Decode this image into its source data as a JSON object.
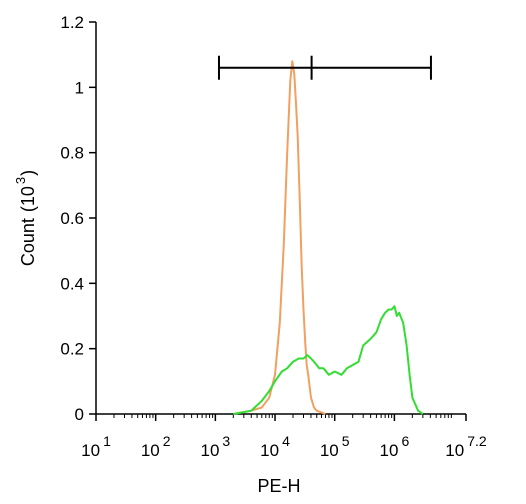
{
  "chart_data": {
    "type": "line",
    "title": "",
    "xlabel": "PE-H",
    "ylabel": "Count",
    "ylabel_unit": "(10",
    "ylabel_unit_exp": "3",
    "ylabel_unit_close": ")",
    "x_scale": "log",
    "xlim": [
      10,
      15848932
    ],
    "ylim": [
      0,
      1.2
    ],
    "grid": false,
    "legend": "none",
    "x_ticks": [
      {
        "base": "10",
        "exp": "1",
        "value": 10
      },
      {
        "base": "10",
        "exp": "2",
        "value": 100
      },
      {
        "base": "10",
        "exp": "3",
        "value": 1000
      },
      {
        "base": "10",
        "exp": "4",
        "value": 10000
      },
      {
        "base": "10",
        "exp": "5",
        "value": 100000
      },
      {
        "base": "10",
        "exp": "6",
        "value": 1000000
      },
      {
        "base": "10",
        "exp": "7.2",
        "value": 15848932
      }
    ],
    "y_ticks": [
      {
        "label": "0",
        "value": 0
      },
      {
        "label": "0.2",
        "value": 0.2
      },
      {
        "label": "0.4",
        "value": 0.4
      },
      {
        "label": "0.6",
        "value": 0.6
      },
      {
        "label": "0.8",
        "value": 0.8
      },
      {
        "label": "1",
        "value": 1.0
      },
      {
        "label": "1.2",
        "value": 1.2
      }
    ],
    "gate": {
      "x_start": 1150,
      "x_divider": 41000,
      "x_end": 4100000,
      "y": 1.06
    },
    "series": [
      {
        "color": "#f0a060",
        "x": [
          2000,
          4000,
          6000,
          8000,
          10000,
          12000,
          14000,
          16000,
          18000,
          19500,
          21000,
          22500,
          24000,
          26000,
          28000,
          30000,
          32000,
          34000,
          36000,
          40000,
          45000,
          50000,
          60000,
          70000
        ],
        "values": [
          0,
          0.01,
          0.02,
          0.05,
          0.12,
          0.28,
          0.52,
          0.8,
          1.02,
          1.08,
          1.04,
          0.95,
          0.85,
          0.65,
          0.45,
          0.32,
          0.22,
          0.15,
          0.12,
          0.05,
          0.02,
          0.01,
          0.005,
          0
        ]
      },
      {
        "color": "#33dd33",
        "x": [
          2000,
          4000,
          6000,
          8000,
          10000,
          13000,
          16000,
          20000,
          25000,
          30000,
          35000,
          40000,
          45000,
          55000,
          65000,
          80000,
          100000,
          130000,
          160000,
          200000,
          250000,
          300000,
          400000,
          500000,
          600000,
          700000,
          800000,
          900000,
          1000000,
          1100000,
          1200000,
          1400000,
          1600000,
          1800000,
          2000000,
          2500000,
          3000000
        ],
        "values": [
          0,
          0.01,
          0.04,
          0.07,
          0.1,
          0.13,
          0.14,
          0.16,
          0.17,
          0.17,
          0.18,
          0.17,
          0.16,
          0.14,
          0.14,
          0.12,
          0.13,
          0.12,
          0.14,
          0.15,
          0.16,
          0.21,
          0.23,
          0.25,
          0.29,
          0.31,
          0.32,
          0.32,
          0.33,
          0.3,
          0.31,
          0.28,
          0.21,
          0.12,
          0.05,
          0.01,
          0
        ]
      }
    ]
  }
}
